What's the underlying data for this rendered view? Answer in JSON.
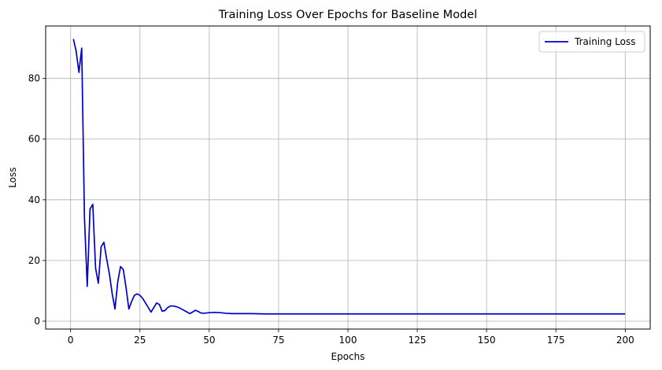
{
  "chart_data": {
    "type": "line",
    "title": "Training Loss Over Epochs for Baseline Model",
    "xlabel": "Epochs",
    "ylabel": "Loss",
    "xlim": [
      -9,
      209
    ],
    "ylim": [
      -2.6,
      97.3
    ],
    "xticks": [
      0,
      25,
      50,
      75,
      100,
      125,
      150,
      175,
      200
    ],
    "yticks": [
      0,
      20,
      40,
      60,
      80
    ],
    "grid": true,
    "legend_position": "top-right",
    "series": [
      {
        "name": "Training Loss",
        "color": "#0000cc",
        "x": [
          1,
          2,
          3,
          4,
          5,
          6,
          7,
          8,
          9,
          10,
          11,
          12,
          13,
          14,
          15,
          16,
          17,
          18,
          19,
          20,
          21,
          22,
          23,
          24,
          25,
          26,
          27,
          28,
          29,
          30,
          31,
          32,
          33,
          34,
          35,
          36,
          37,
          38,
          39,
          40,
          41,
          42,
          43,
          44,
          45,
          46,
          47,
          48,
          50,
          52,
          54,
          56,
          58,
          60,
          65,
          70,
          80,
          100,
          125,
          150,
          175,
          200
        ],
        "y": [
          93,
          89,
          82,
          90,
          34,
          11.5,
          37,
          38.5,
          17.5,
          12.5,
          24.5,
          26,
          20.5,
          15.5,
          9,
          4,
          13,
          18,
          17,
          11,
          4,
          6.5,
          8.5,
          9,
          8.5,
          7.5,
          6,
          4.5,
          3,
          4.5,
          6,
          5.5,
          3.3,
          3.5,
          4.5,
          5,
          5,
          4.8,
          4.5,
          4,
          3.5,
          3,
          2.5,
          3,
          3.6,
          3.2,
          2.7,
          2.6,
          2.8,
          2.9,
          2.8,
          2.6,
          2.5,
          2.5,
          2.5,
          2.4,
          2.4,
          2.4,
          2.4,
          2.4,
          2.4,
          2.4
        ]
      }
    ]
  }
}
